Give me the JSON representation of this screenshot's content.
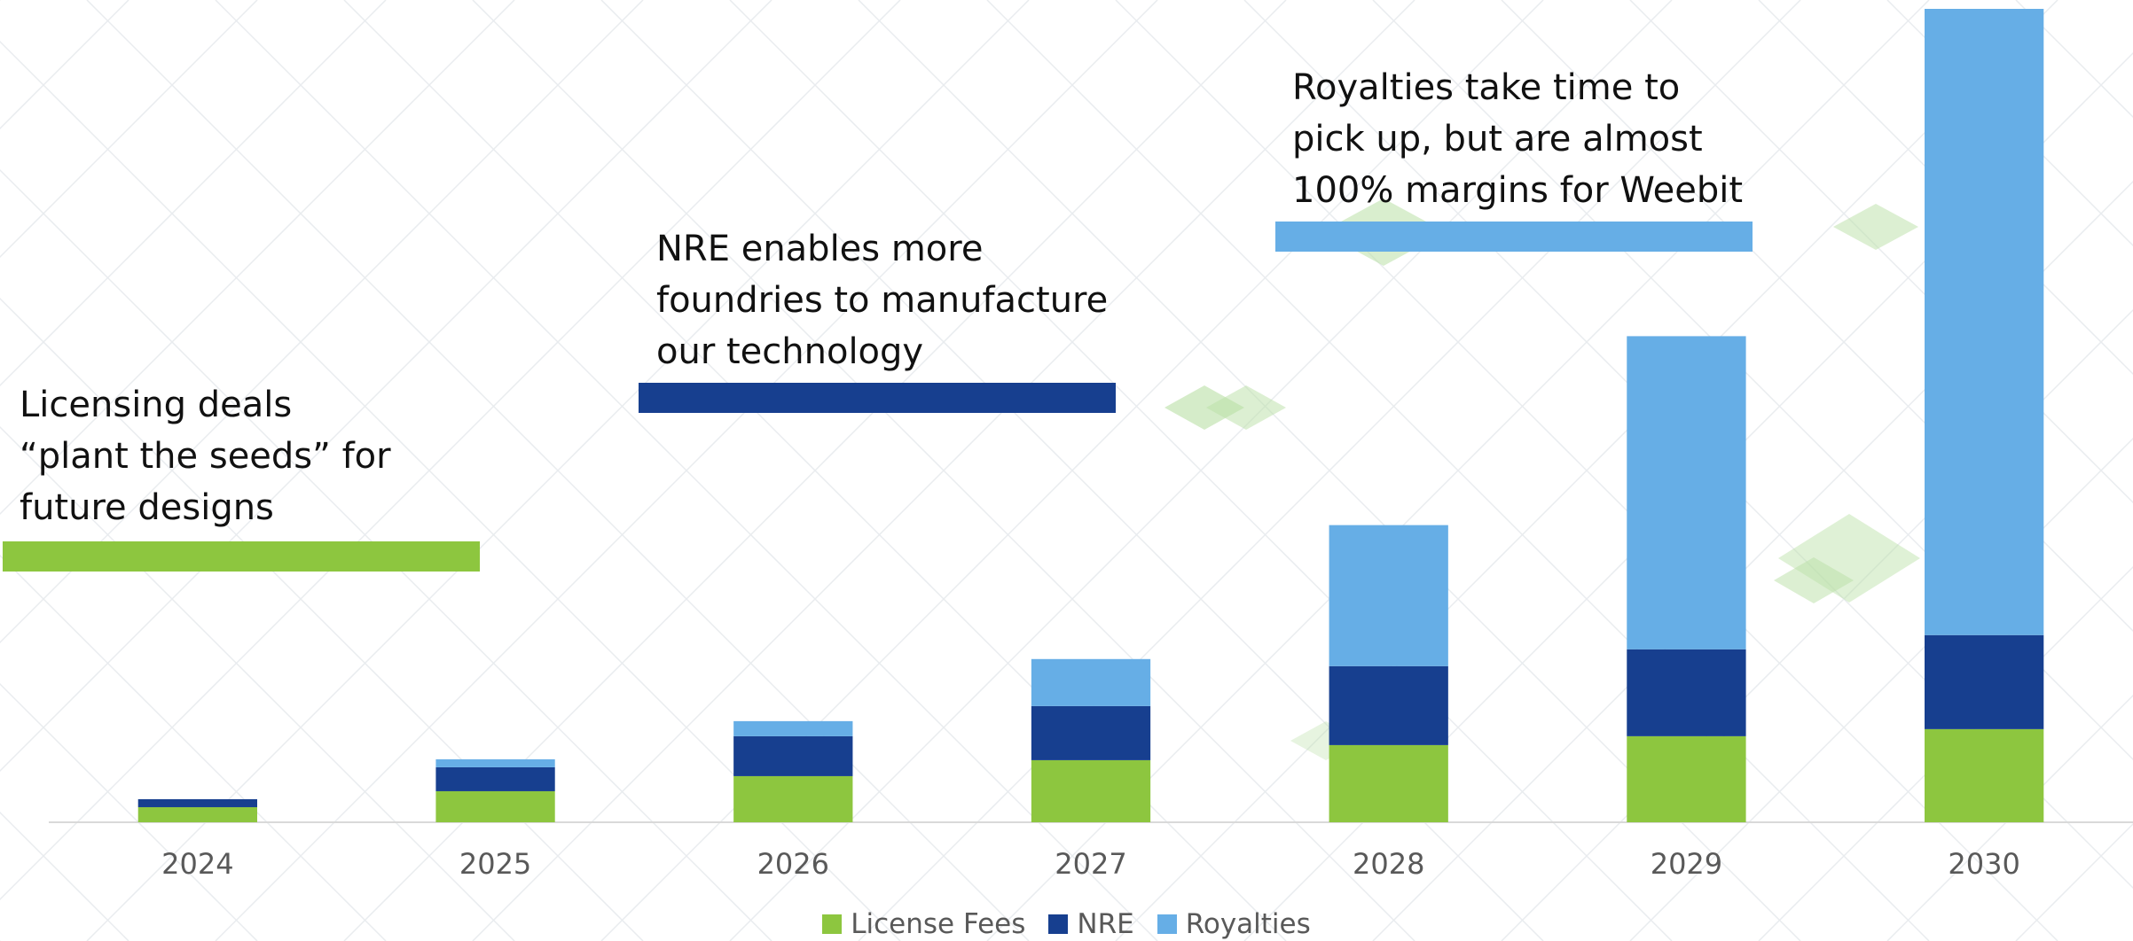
{
  "annotations": {
    "licensing": {
      "text": "Licensing deals\n“plant the seeds” for\nfuture designs",
      "color": "#8DC63F"
    },
    "nre": {
      "text": "NRE enables more\nfoundries to manufacture\nour technology",
      "color": "#173F8F"
    },
    "royalties": {
      "text": "Royalties take time to\npick up, but are almost\n100% margins for Weebit",
      "color": "#66AEE6"
    }
  },
  "chart_data": {
    "type": "bar",
    "stacked": true,
    "categories": [
      "2024",
      "2025",
      "2026",
      "2027",
      "2028",
      "2029",
      "2030"
    ],
    "series": [
      {
        "name": "License Fees",
        "color": "#8DC63F",
        "values": [
          17,
          35,
          52,
          70,
          87,
          97,
          105
        ]
      },
      {
        "name": "NRE",
        "color": "#173F8F",
        "values": [
          9,
          27,
          45,
          61,
          89,
          98,
          106
        ]
      },
      {
        "name": "Royalties",
        "color": "#66AEE6",
        "values": [
          0,
          9,
          17,
          53,
          159,
          353,
          706
        ]
      }
    ],
    "ylim": [
      0,
      917
    ],
    "y_axis_labels_shown": false,
    "grid": false,
    "legend_position": "bottom"
  }
}
